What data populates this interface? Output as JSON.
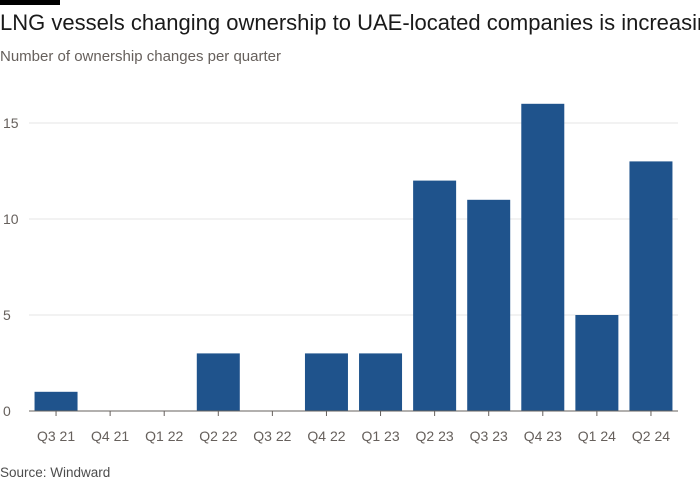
{
  "title": "LNG vessels changing ownership to UAE-located companies is increasing",
  "subtitle": "Number of ownership changes per quarter",
  "source": "Source: Windward",
  "colors": {
    "bar": "#1f538c",
    "grid": "#e6e6e6",
    "axis": "#66605c",
    "text": "#1a1a1a",
    "muted": "#66605c"
  },
  "chart_data": {
    "type": "bar",
    "title": "LNG vessels changing ownership to UAE-located companies is increasing",
    "subtitle": "Number of ownership changes per quarter",
    "categories": [
      "Q3 21",
      "Q4 21",
      "Q1 22",
      "Q2 22",
      "Q3 22",
      "Q4 22",
      "Q1 23",
      "Q2 23",
      "Q3 23",
      "Q4 23",
      "Q1 24",
      "Q2 24"
    ],
    "values": [
      1,
      0,
      0,
      3,
      0,
      3,
      3,
      12,
      11,
      16,
      5,
      13
    ],
    "xlabel": "",
    "ylabel": "",
    "ylim": [
      0,
      16
    ],
    "yticks": [
      0,
      5,
      10,
      15
    ],
    "grid": true,
    "legend": "none"
  }
}
